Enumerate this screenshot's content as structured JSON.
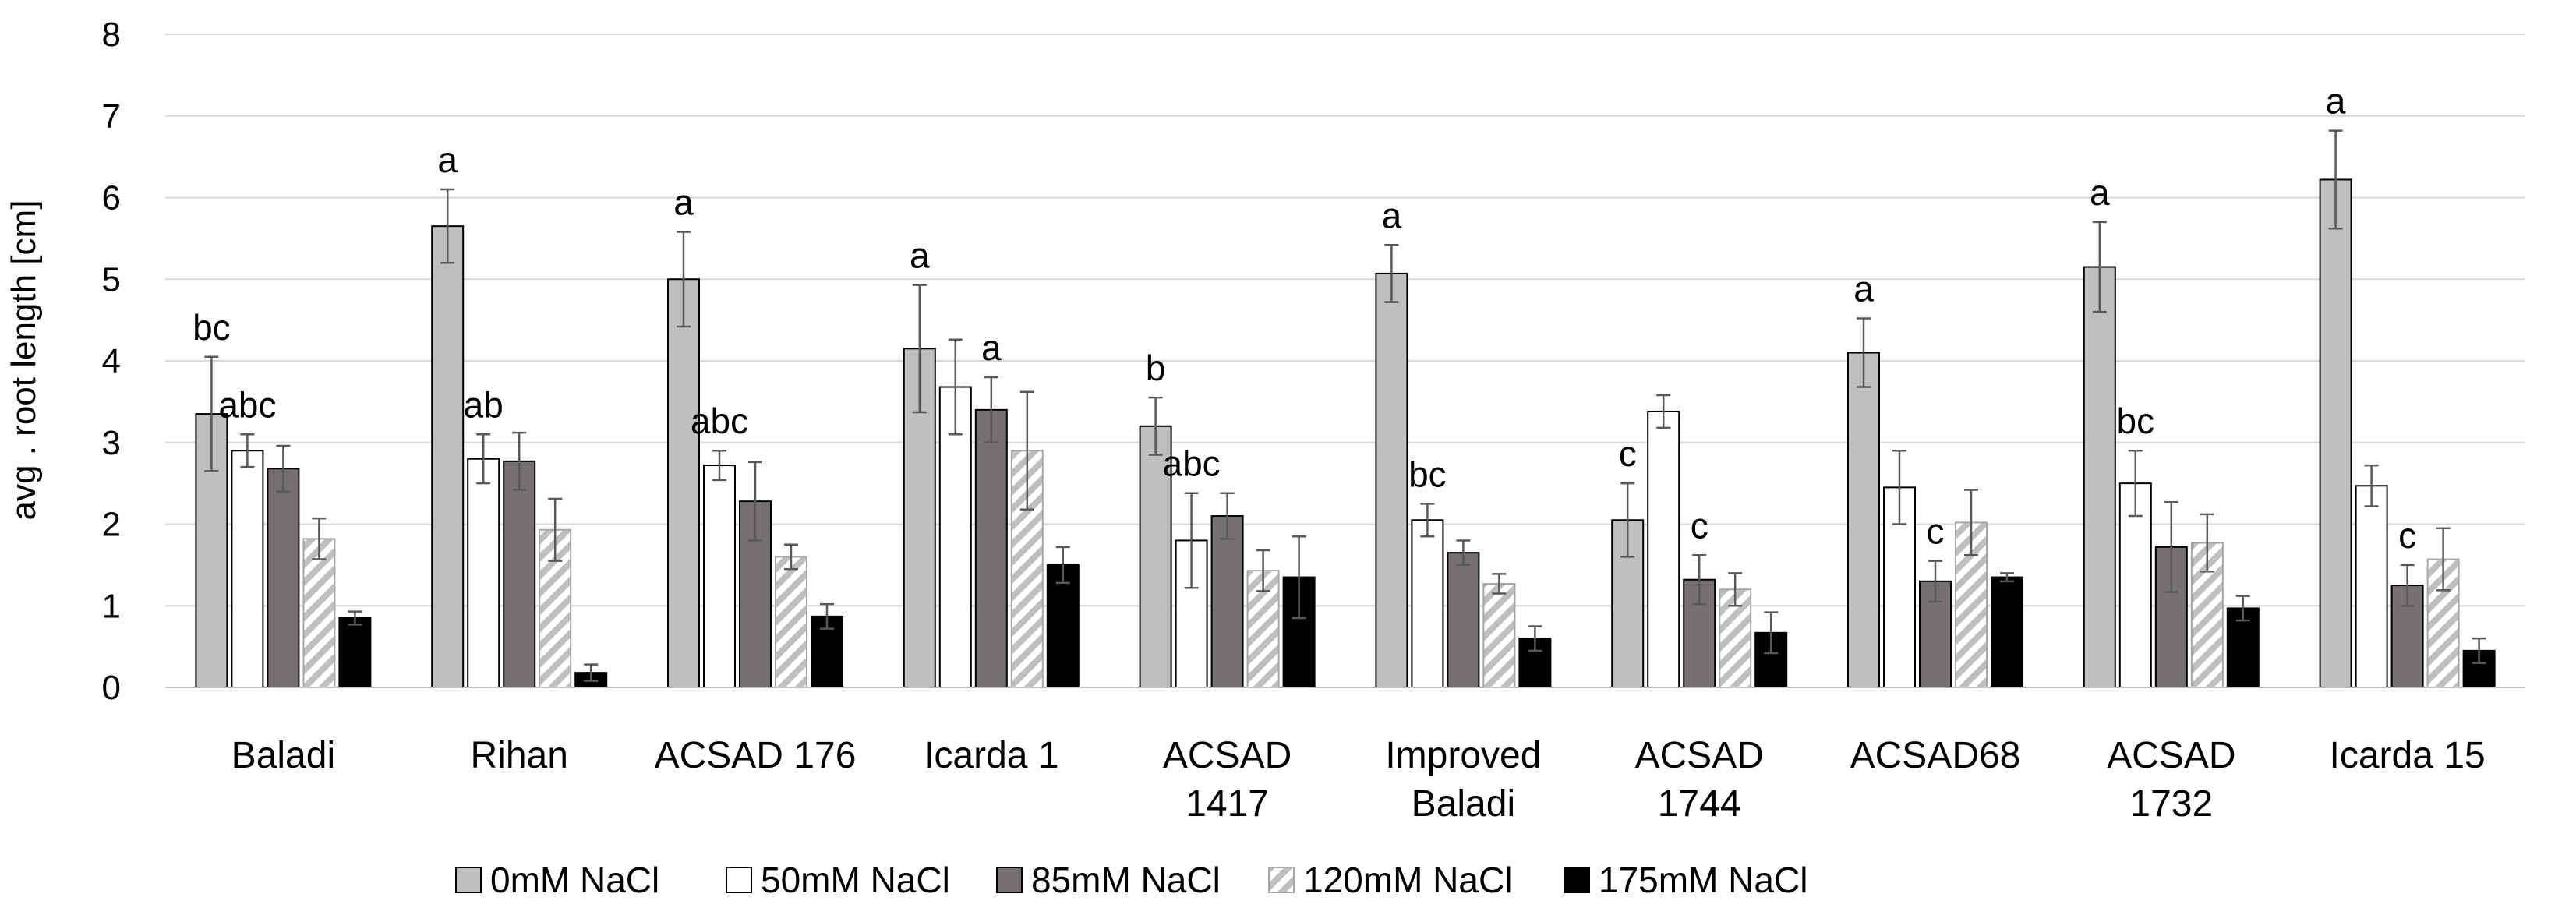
{
  "chart_data": {
    "type": "bar",
    "title": "",
    "xlabel": "",
    "ylabel": "avg . root length [cm]",
    "ylim": [
      0,
      8
    ],
    "yticks": [
      0,
      1,
      2,
      3,
      4,
      5,
      6,
      7,
      8
    ],
    "grid": true,
    "legend_position": "bottom",
    "categories": [
      [
        "Baladi"
      ],
      [
        "Rihan"
      ],
      [
        "ACSAD 176"
      ],
      [
        "Icarda 1"
      ],
      [
        "ACSAD",
        "1417"
      ],
      [
        "Improved",
        "Baladi"
      ],
      [
        "ACSAD",
        "1744"
      ],
      [
        "ACSAD68"
      ],
      [
        "ACSAD",
        "1732"
      ],
      [
        "Icarda 15"
      ]
    ],
    "series": [
      {
        "name": "0mM NaCl",
        "color": "#bfbfbf",
        "pattern": "solid",
        "values": [
          3.35,
          5.65,
          5.0,
          4.15,
          3.2,
          5.07,
          2.05,
          4.1,
          5.15,
          6.22
        ],
        "errors": [
          0.7,
          0.45,
          0.58,
          0.78,
          0.35,
          0.35,
          0.45,
          0.42,
          0.55,
          0.6
        ]
      },
      {
        "name": "50mM NaCl",
        "color": "#ffffff",
        "pattern": "solid",
        "values": [
          2.9,
          2.8,
          2.72,
          3.68,
          1.8,
          2.05,
          3.38,
          2.45,
          2.5,
          2.47
        ],
        "errors": [
          0.2,
          0.3,
          0.18,
          0.58,
          0.58,
          0.2,
          0.2,
          0.45,
          0.4,
          0.25
        ]
      },
      {
        "name": "85mM NaCl",
        "color": "#767171",
        "pattern": "solid",
        "values": [
          2.68,
          2.77,
          2.28,
          3.4,
          2.1,
          1.65,
          1.32,
          1.3,
          1.72,
          1.25
        ],
        "errors": [
          0.28,
          0.35,
          0.48,
          0.4,
          0.28,
          0.15,
          0.3,
          0.25,
          0.55,
          0.25
        ]
      },
      {
        "name": "120mM NaCl",
        "color": "#d9d9d9",
        "pattern": "hatch",
        "values": [
          1.82,
          1.93,
          1.6,
          2.9,
          1.43,
          1.27,
          1.2,
          2.02,
          1.77,
          1.57
        ],
        "errors": [
          0.25,
          0.38,
          0.15,
          0.72,
          0.25,
          0.12,
          0.2,
          0.4,
          0.35,
          0.38
        ]
      },
      {
        "name": "175mM NaCl",
        "color": "#000000",
        "pattern": "solid",
        "values": [
          0.85,
          0.18,
          0.87,
          1.5,
          1.35,
          0.6,
          0.67,
          1.35,
          0.97,
          0.45
        ],
        "errors": [
          0.08,
          0.1,
          0.15,
          0.22,
          0.5,
          0.15,
          0.25,
          0.05,
          0.15,
          0.15
        ]
      }
    ],
    "annotations": [
      {
        "category": 0,
        "series": 0,
        "text": "bc"
      },
      {
        "category": 0,
        "series": 1,
        "text": "abc"
      },
      {
        "category": 1,
        "series": 0,
        "text": "a"
      },
      {
        "category": 1,
        "series": 1,
        "text": "ab"
      },
      {
        "category": 2,
        "series": 0,
        "text": "a"
      },
      {
        "category": 2,
        "series": 1,
        "text": "abc"
      },
      {
        "category": 3,
        "series": 0,
        "text": "a"
      },
      {
        "category": 3,
        "series": 2,
        "text": "a"
      },
      {
        "category": 4,
        "series": 0,
        "text": "b"
      },
      {
        "category": 4,
        "series": 1,
        "text": "abc"
      },
      {
        "category": 5,
        "series": 0,
        "text": "a"
      },
      {
        "category": 5,
        "series": 1,
        "text": "bc"
      },
      {
        "category": 6,
        "series": 0,
        "text": "c"
      },
      {
        "category": 6,
        "series": 2,
        "text": "c"
      },
      {
        "category": 7,
        "series": 0,
        "text": "a"
      },
      {
        "category": 7,
        "series": 2,
        "text": "c"
      },
      {
        "category": 8,
        "series": 0,
        "text": "a"
      },
      {
        "category": 8,
        "series": 1,
        "text": "bc"
      },
      {
        "category": 9,
        "series": 0,
        "text": "a"
      },
      {
        "category": 9,
        "series": 2,
        "text": "c"
      }
    ]
  }
}
